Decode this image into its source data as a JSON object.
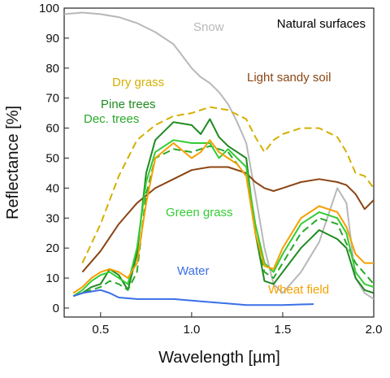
{
  "chart_data": {
    "type": "line",
    "title": "Natural surfaces",
    "xlabel": "Wavelength  [µm]",
    "ylabel": "Reflectance  [%]",
    "xlim": [
      0.3,
      2.0
    ],
    "ylim": [
      -3,
      100
    ],
    "x_ticks": [
      0.5,
      1.0,
      1.5,
      2.0
    ],
    "x_tick_labels": [
      "0.5",
      "1.0",
      "1.5",
      "2.0"
    ],
    "y_ticks": [
      0,
      10,
      20,
      30,
      40,
      50,
      60,
      70,
      80,
      90,
      100
    ],
    "y_tick_labels": [
      "0",
      "10",
      "20",
      "30",
      "40",
      "50",
      "60",
      "70",
      "80",
      "90",
      "100"
    ],
    "grid": false,
    "series": [
      {
        "name": "Snow",
        "color": "#b8b8b8",
        "dash": "solid",
        "x": [
          0.3,
          0.4,
          0.5,
          0.6,
          0.7,
          0.8,
          0.9,
          0.95,
          1.0,
          1.05,
          1.1,
          1.15,
          1.2,
          1.25,
          1.3,
          1.35,
          1.4,
          1.45,
          1.5,
          1.6,
          1.7,
          1.8,
          1.85,
          1.9,
          1.95,
          2.0
        ],
        "y": [
          98,
          98.5,
          98,
          97,
          95,
          92,
          88,
          84,
          80,
          77,
          75,
          72,
          68,
          62,
          55,
          38,
          20,
          8,
          5,
          12,
          22,
          40,
          35,
          10,
          5,
          3
        ]
      },
      {
        "name": "Light sandy soil",
        "color": "#8b4513",
        "dash": "solid",
        "x": [
          0.4,
          0.5,
          0.6,
          0.7,
          0.8,
          0.9,
          1.0,
          1.1,
          1.2,
          1.3,
          1.35,
          1.4,
          1.45,
          1.5,
          1.6,
          1.7,
          1.8,
          1.85,
          1.9,
          1.95,
          2.0
        ],
        "y": [
          12,
          19,
          28,
          35,
          40,
          43,
          46,
          47,
          47,
          45,
          42,
          40,
          39,
          40,
          42,
          43,
          42,
          41,
          38,
          33,
          36
        ]
      },
      {
        "name": "Dry grass",
        "color": "#d4b000",
        "dash": "dashed",
        "x": [
          0.4,
          0.5,
          0.55,
          0.6,
          0.7,
          0.8,
          0.9,
          1.0,
          1.1,
          1.2,
          1.3,
          1.35,
          1.4,
          1.45,
          1.5,
          1.6,
          1.7,
          1.8,
          1.85,
          1.9,
          1.95,
          2.0
        ],
        "y": [
          15,
          28,
          36,
          44,
          56,
          61,
          64,
          65,
          67,
          66,
          63,
          57,
          52,
          56,
          58,
          60,
          60,
          57,
          52,
          45,
          44,
          40
        ]
      },
      {
        "name": "Pine trees",
        "color": "#1f8a1f",
        "dash": "solid",
        "x": [
          0.35,
          0.4,
          0.45,
          0.5,
          0.55,
          0.6,
          0.65,
          0.7,
          0.75,
          0.8,
          0.9,
          1.0,
          1.05,
          1.1,
          1.15,
          1.2,
          1.25,
          1.3,
          1.35,
          1.4,
          1.45,
          1.5,
          1.6,
          1.7,
          1.8,
          1.85,
          1.9,
          1.95,
          2.0
        ],
        "y": [
          4,
          5,
          7,
          8,
          13,
          11,
          6,
          18,
          45,
          56,
          62,
          61,
          58,
          63,
          57,
          54,
          52,
          50,
          25,
          9,
          8,
          12,
          20,
          26,
          23,
          20,
          10,
          6,
          5
        ]
      },
      {
        "name": "Dec. trees",
        "color": "#2aa82a",
        "dash": "dashed",
        "x": [
          0.35,
          0.4,
          0.45,
          0.5,
          0.55,
          0.6,
          0.65,
          0.7,
          0.75,
          0.8,
          0.9,
          1.0,
          1.1,
          1.2,
          1.25,
          1.3,
          1.35,
          1.4,
          1.45,
          1.5,
          1.6,
          1.7,
          1.8,
          1.9,
          2.0
        ],
        "y": [
          4,
          5,
          6,
          7,
          9,
          8,
          6,
          12,
          38,
          50,
          53,
          52,
          54,
          52,
          48,
          44,
          25,
          12,
          10,
          15,
          25,
          30,
          28,
          15,
          8
        ]
      },
      {
        "name": "Green grass",
        "color": "#33cc33",
        "dash": "solid",
        "x": [
          0.35,
          0.4,
          0.45,
          0.5,
          0.55,
          0.6,
          0.65,
          0.7,
          0.75,
          0.8,
          0.9,
          1.0,
          1.1,
          1.15,
          1.2,
          1.25,
          1.3,
          1.35,
          1.4,
          1.45,
          1.5,
          1.6,
          1.7,
          1.8,
          1.85,
          1.9,
          1.95,
          2.0
        ],
        "y": [
          4,
          6,
          9,
          11,
          12,
          10,
          8,
          20,
          42,
          52,
          56,
          55,
          55,
          50,
          53,
          50,
          47,
          28,
          15,
          12,
          18,
          28,
          32,
          30,
          25,
          12,
          8,
          7
        ]
      },
      {
        "name": "Wheat field",
        "color": "#f5a000",
        "dash": "solid",
        "x": [
          0.35,
          0.4,
          0.45,
          0.5,
          0.55,
          0.6,
          0.65,
          0.7,
          0.75,
          0.8,
          0.9,
          1.0,
          1.05,
          1.1,
          1.15,
          1.2,
          1.25,
          1.3,
          1.35,
          1.4,
          1.45,
          1.5,
          1.6,
          1.7,
          1.8,
          1.85,
          1.9,
          1.95,
          2.0
        ],
        "y": [
          5,
          7,
          10,
          12,
          13,
          12,
          10,
          15,
          35,
          50,
          55,
          50,
          52,
          56,
          52,
          50,
          48,
          44,
          25,
          14,
          13,
          20,
          30,
          34,
          32,
          27,
          18,
          15,
          15
        ]
      },
      {
        "name": "Water",
        "color": "#3b6fe8",
        "dash": "solid",
        "x": [
          0.35,
          0.4,
          0.45,
          0.5,
          0.55,
          0.6,
          0.7,
          0.8,
          0.9,
          1.0,
          1.1,
          1.2,
          1.3,
          1.4,
          1.5,
          1.6,
          1.67
        ],
        "y": [
          4,
          5,
          5.5,
          6,
          5,
          3.5,
          3,
          3,
          3,
          2.5,
          2,
          1.5,
          1,
          1,
          1,
          1.2,
          1.3
        ]
      }
    ],
    "series_labels": [
      {
        "text": "Snow",
        "color": "#b8b8b8"
      },
      {
        "text": "Light sandy soil",
        "color": "#8b4513"
      },
      {
        "text": "Dry grass",
        "color": "#d4b000"
      },
      {
        "text": "Pine trees",
        "color": "#1f8a1f"
      },
      {
        "text": "Dec. trees",
        "color": "#2aa82a"
      },
      {
        "text": "Green grass",
        "color": "#33cc33"
      },
      {
        "text": "Water",
        "color": "#3b6fe8"
      },
      {
        "text": "Wheat field",
        "color": "#f5a000"
      }
    ]
  }
}
